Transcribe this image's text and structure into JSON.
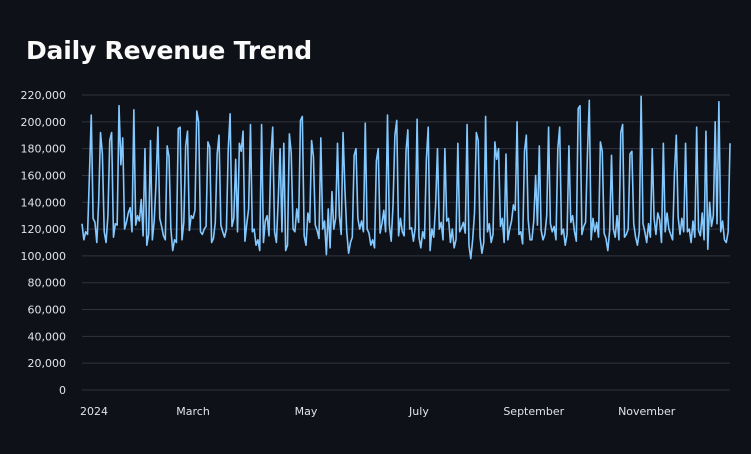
{
  "chart_data": {
    "type": "line",
    "title": "Daily Revenue Trend",
    "xlabel": "",
    "ylabel": "",
    "ylim": [
      0,
      220000
    ],
    "y_ticks": [
      0,
      20000,
      40000,
      60000,
      80000,
      100000,
      120000,
      140000,
      160000,
      180000,
      200000,
      220000
    ],
    "y_tick_labels": [
      "0",
      "20,000",
      "40,000",
      "60,000",
      "80,000",
      "100,000",
      "120,000",
      "140,000",
      "160,000",
      "180,000",
      "200,000",
      "220,000"
    ],
    "x_tick_labels": [
      "2024",
      "March",
      "May",
      "July",
      "September",
      "November"
    ],
    "x_tick_days": [
      0,
      60,
      121,
      182,
      244,
      305
    ],
    "grid": true,
    "series": [
      {
        "name": "Daily Revenue",
        "color": "#83c9ff",
        "values": [
          124000,
          112000,
          118000,
          116000,
          160000,
          205000,
          128000,
          125000,
          110000,
          140000,
          192000,
          176000,
          118000,
          110000,
          130000,
          186000,
          192000,
          114000,
          124000,
          123000,
          212000,
          168000,
          188000,
          120000,
          125000,
          132000,
          136000,
          118000,
          209000,
          123000,
          130000,
          126000,
          142000,
          115000,
          180000,
          108000,
          116000,
          186000,
          112000,
          126000,
          155000,
          196000,
          128000,
          122000,
          115000,
          112000,
          182000,
          174000,
          120000,
          104000,
          112000,
          110000,
          195000,
          196000,
          112000,
          125000,
          182000,
          193000,
          119000,
          130000,
          128000,
          134000,
          208000,
          200000,
          118000,
          116000,
          120000,
          122000,
          185000,
          181000,
          110000,
          113000,
          125000,
          176000,
          190000,
          123000,
          118000,
          114000,
          120000,
          180000,
          206000,
          122000,
          128000,
          172000,
          118000,
          184000,
          178000,
          193000,
          111000,
          124000,
          135000,
          198000,
          118000,
          120000,
          108000,
          112000,
          104000,
          198000,
          110000,
          126000,
          130000,
          115000,
          174000,
          196000,
          118000,
          110000,
          142000,
          180000,
          118000,
          184000,
          104000,
          108000,
          191000,
          177000,
          120000,
          118000,
          135000,
          125000,
          201000,
          204000,
          115000,
          108000,
          132000,
          125000,
          186000,
          174000,
          123000,
          119000,
          113000,
          188000,
          120000,
          126000,
          101000,
          135000,
          106000,
          148000,
          120000,
          128000,
          184000,
          130000,
          116000,
          192000,
          150000,
          118000,
          102000,
          110000,
          114000,
          175000,
          180000,
          128000,
          120000,
          126000,
          118000,
          199000,
          120000,
          117000,
          108000,
          112000,
          106000,
          171000,
          180000,
          117000,
          124000,
          134000,
          118000,
          205000,
          123000,
          111000,
          138000,
          190000,
          201000,
          115000,
          128000,
          118000,
          115000,
          178000,
          194000,
          120000,
          121000,
          111000,
          121000,
          202000,
          114000,
          106000,
          118000,
          113000,
          172000,
          196000,
          104000,
          120000,
          114000,
          138000,
          180000,
          120000,
          125000,
          112000,
          180000,
          126000,
          128000,
          110000,
          120000,
          106000,
          112000,
          184000,
          118000,
          121000,
          125000,
          117000,
          198000,
          108000,
          98000,
          112000,
          132000,
          192000,
          186000,
          114000,
          102000,
          110000,
          204000,
          118000,
          124000,
          110000,
          116000,
          185000,
          172000,
          180000,
          122000,
          128000,
          110000,
          176000,
          112000,
          120000,
          126000,
          138000,
          134000,
          200000,
          116000,
          118000,
          109000,
          178000,
          190000,
          127000,
          112000,
          112000,
          126000,
          160000,
          123000,
          182000,
          119000,
          112000,
          116000,
          130000,
          196000,
          124000,
          118000,
          122000,
          112000,
          180000,
          196000,
          116000,
          120000,
          108000,
          116000,
          182000,
          125000,
          130000,
          118000,
          111000,
          210000,
          212000,
          116000,
          122000,
          125000,
          176000,
          216000,
          112000,
          128000,
          118000,
          125000,
          114000,
          185000,
          178000,
          117000,
          113000,
          104000,
          119000,
          175000,
          120000,
          114000,
          130000,
          112000,
          192000,
          198000,
          114000,
          116000,
          120000,
          176000,
          178000,
          124000,
          114000,
          108000,
          118000,
          219000,
          124000,
          118000,
          110000,
          124000,
          114000,
          180000,
          128000,
          116000,
          132000,
          127000,
          110000,
          184000,
          118000,
          132000,
          120000,
          116000,
          112000,
          162000,
          190000,
          129000,
          116000,
          128000,
          118000,
          184000,
          118000,
          120000,
          110000,
          126000,
          114000,
          196000,
          119000,
          115000,
          132000,
          112000,
          193000,
          105000,
          140000,
          122000,
          130000,
          200000,
          124000,
          215000,
          118000,
          126000,
          112000,
          110000,
          118000,
          184000
        ]
      }
    ]
  }
}
